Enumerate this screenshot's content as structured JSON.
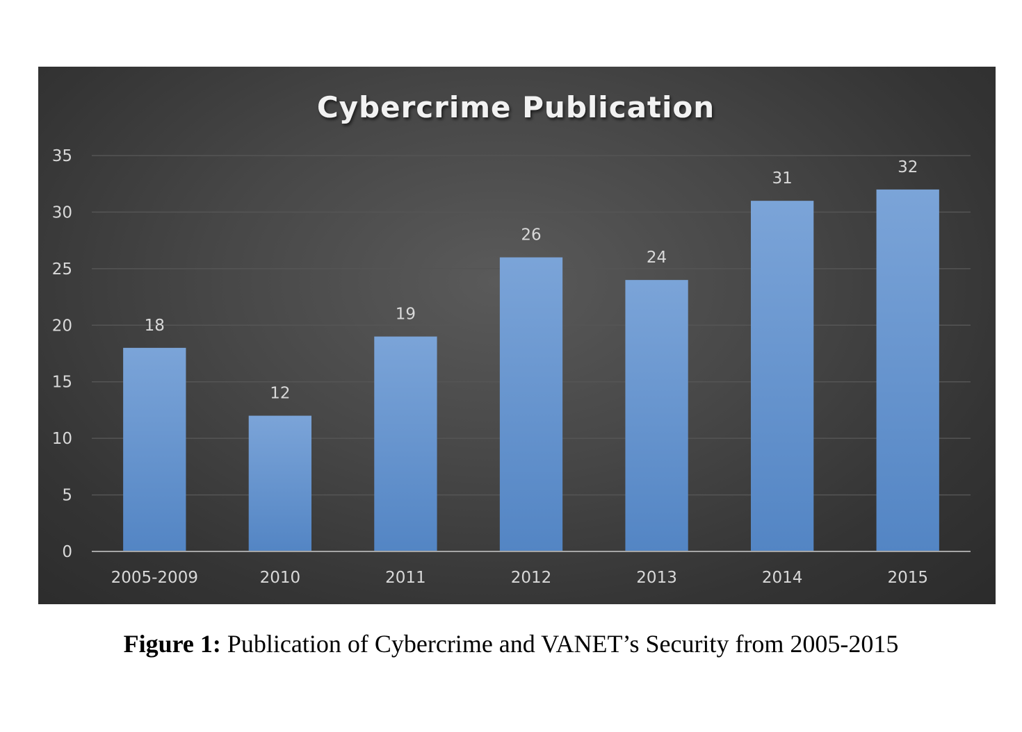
{
  "chart_data": {
    "type": "bar",
    "title": "Cybercrime Publication",
    "xlabel": "",
    "ylabel": "",
    "categories": [
      "2005-2009",
      "2010",
      "2011",
      "2012",
      "2013",
      "2014",
      "2015"
    ],
    "values": [
      18,
      12,
      19,
      26,
      24,
      31,
      32
    ],
    "ylim": [
      0,
      35
    ],
    "yticks": [
      0,
      5,
      10,
      15,
      20,
      25,
      30,
      35
    ],
    "data_labels": true,
    "grid": true,
    "legend": "none",
    "colors": {
      "bar_top": "#7ba4d8",
      "bar_bottom": "#5385c4",
      "background": "#3a3a3a",
      "grid": "#555555",
      "axis": "#a6a6a6",
      "text": "#d9d9d9",
      "title": "#f2f2f2"
    }
  },
  "caption": {
    "label": "Figure 1:",
    "text": " Publication of Cybercrime and VANET’s Security from 2005-2015"
  }
}
